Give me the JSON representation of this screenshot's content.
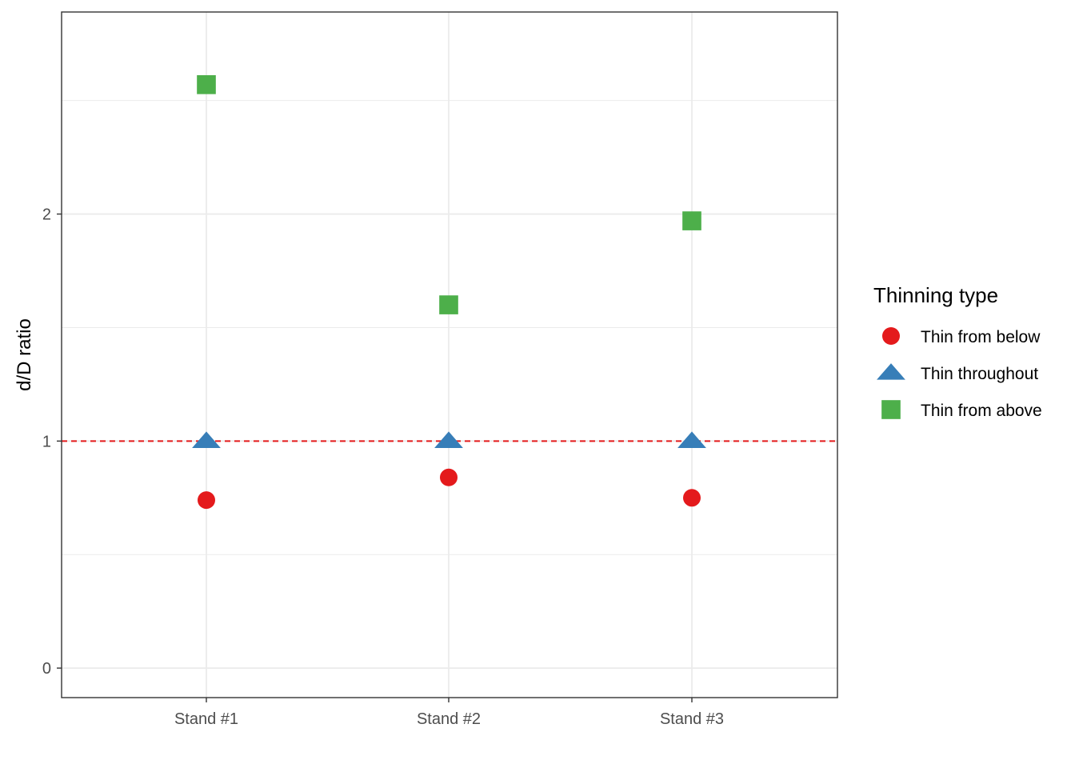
{
  "chart_data": {
    "type": "scatter",
    "categories": [
      "Stand #1",
      "Stand #2",
      "Stand #3"
    ],
    "xlabel": "",
    "ylabel": "d/D ratio",
    "ylim": [
      -0.13,
      2.89
    ],
    "yticks": [
      0,
      1,
      2
    ],
    "ytick_labels": [
      "0",
      "1",
      "2"
    ],
    "grid": true,
    "reference_line": {
      "y": 1,
      "style": "dashed",
      "color": "#e41a1c"
    },
    "legend": {
      "title": "Thinning type",
      "placement": "right"
    },
    "series": [
      {
        "name": "Thin from below",
        "shape": "circle",
        "color": "#e41a1c",
        "values": [
          0.74,
          0.84,
          0.75
        ]
      },
      {
        "name": "Thin throughout",
        "shape": "triangle",
        "color": "#377eb8",
        "values": [
          1.0,
          1.0,
          1.0
        ]
      },
      {
        "name": "Thin from above",
        "shape": "square",
        "color": "#4daf4a",
        "values": [
          2.57,
          1.6,
          1.97
        ]
      }
    ]
  }
}
